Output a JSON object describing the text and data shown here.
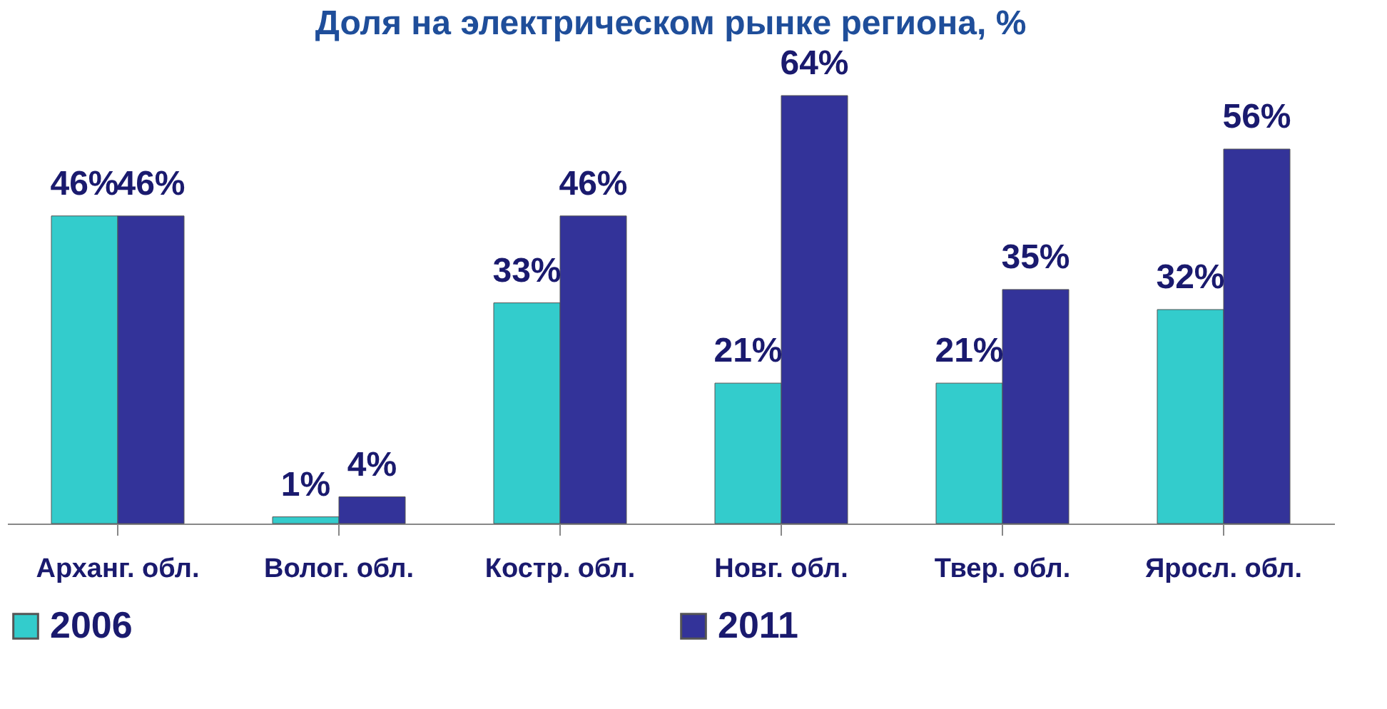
{
  "chart_data": {
    "type": "bar",
    "title": "Доля на электрическом рынке региона, %",
    "categories": [
      "Арханг. обл.",
      "Волог. обл.",
      "Костр. обл.",
      "Новг. обл.",
      "Твер. обл.",
      "Яросл. обл."
    ],
    "series": [
      {
        "name": "2006",
        "color": "#33cccc",
        "values": [
          46,
          1,
          33,
          21,
          21,
          32
        ],
        "value_labels": [
          "46%",
          "1%",
          "33%",
          "21%",
          "21%",
          "32%"
        ]
      },
      {
        "name": "2011",
        "color": "#333399",
        "values": [
          46,
          4,
          46,
          64,
          35,
          56
        ],
        "value_labels": [
          "46%",
          "4%",
          "46%",
          "64%",
          "35%",
          "56%"
        ]
      }
    ],
    "legend": "bottom",
    "grid": false
  }
}
